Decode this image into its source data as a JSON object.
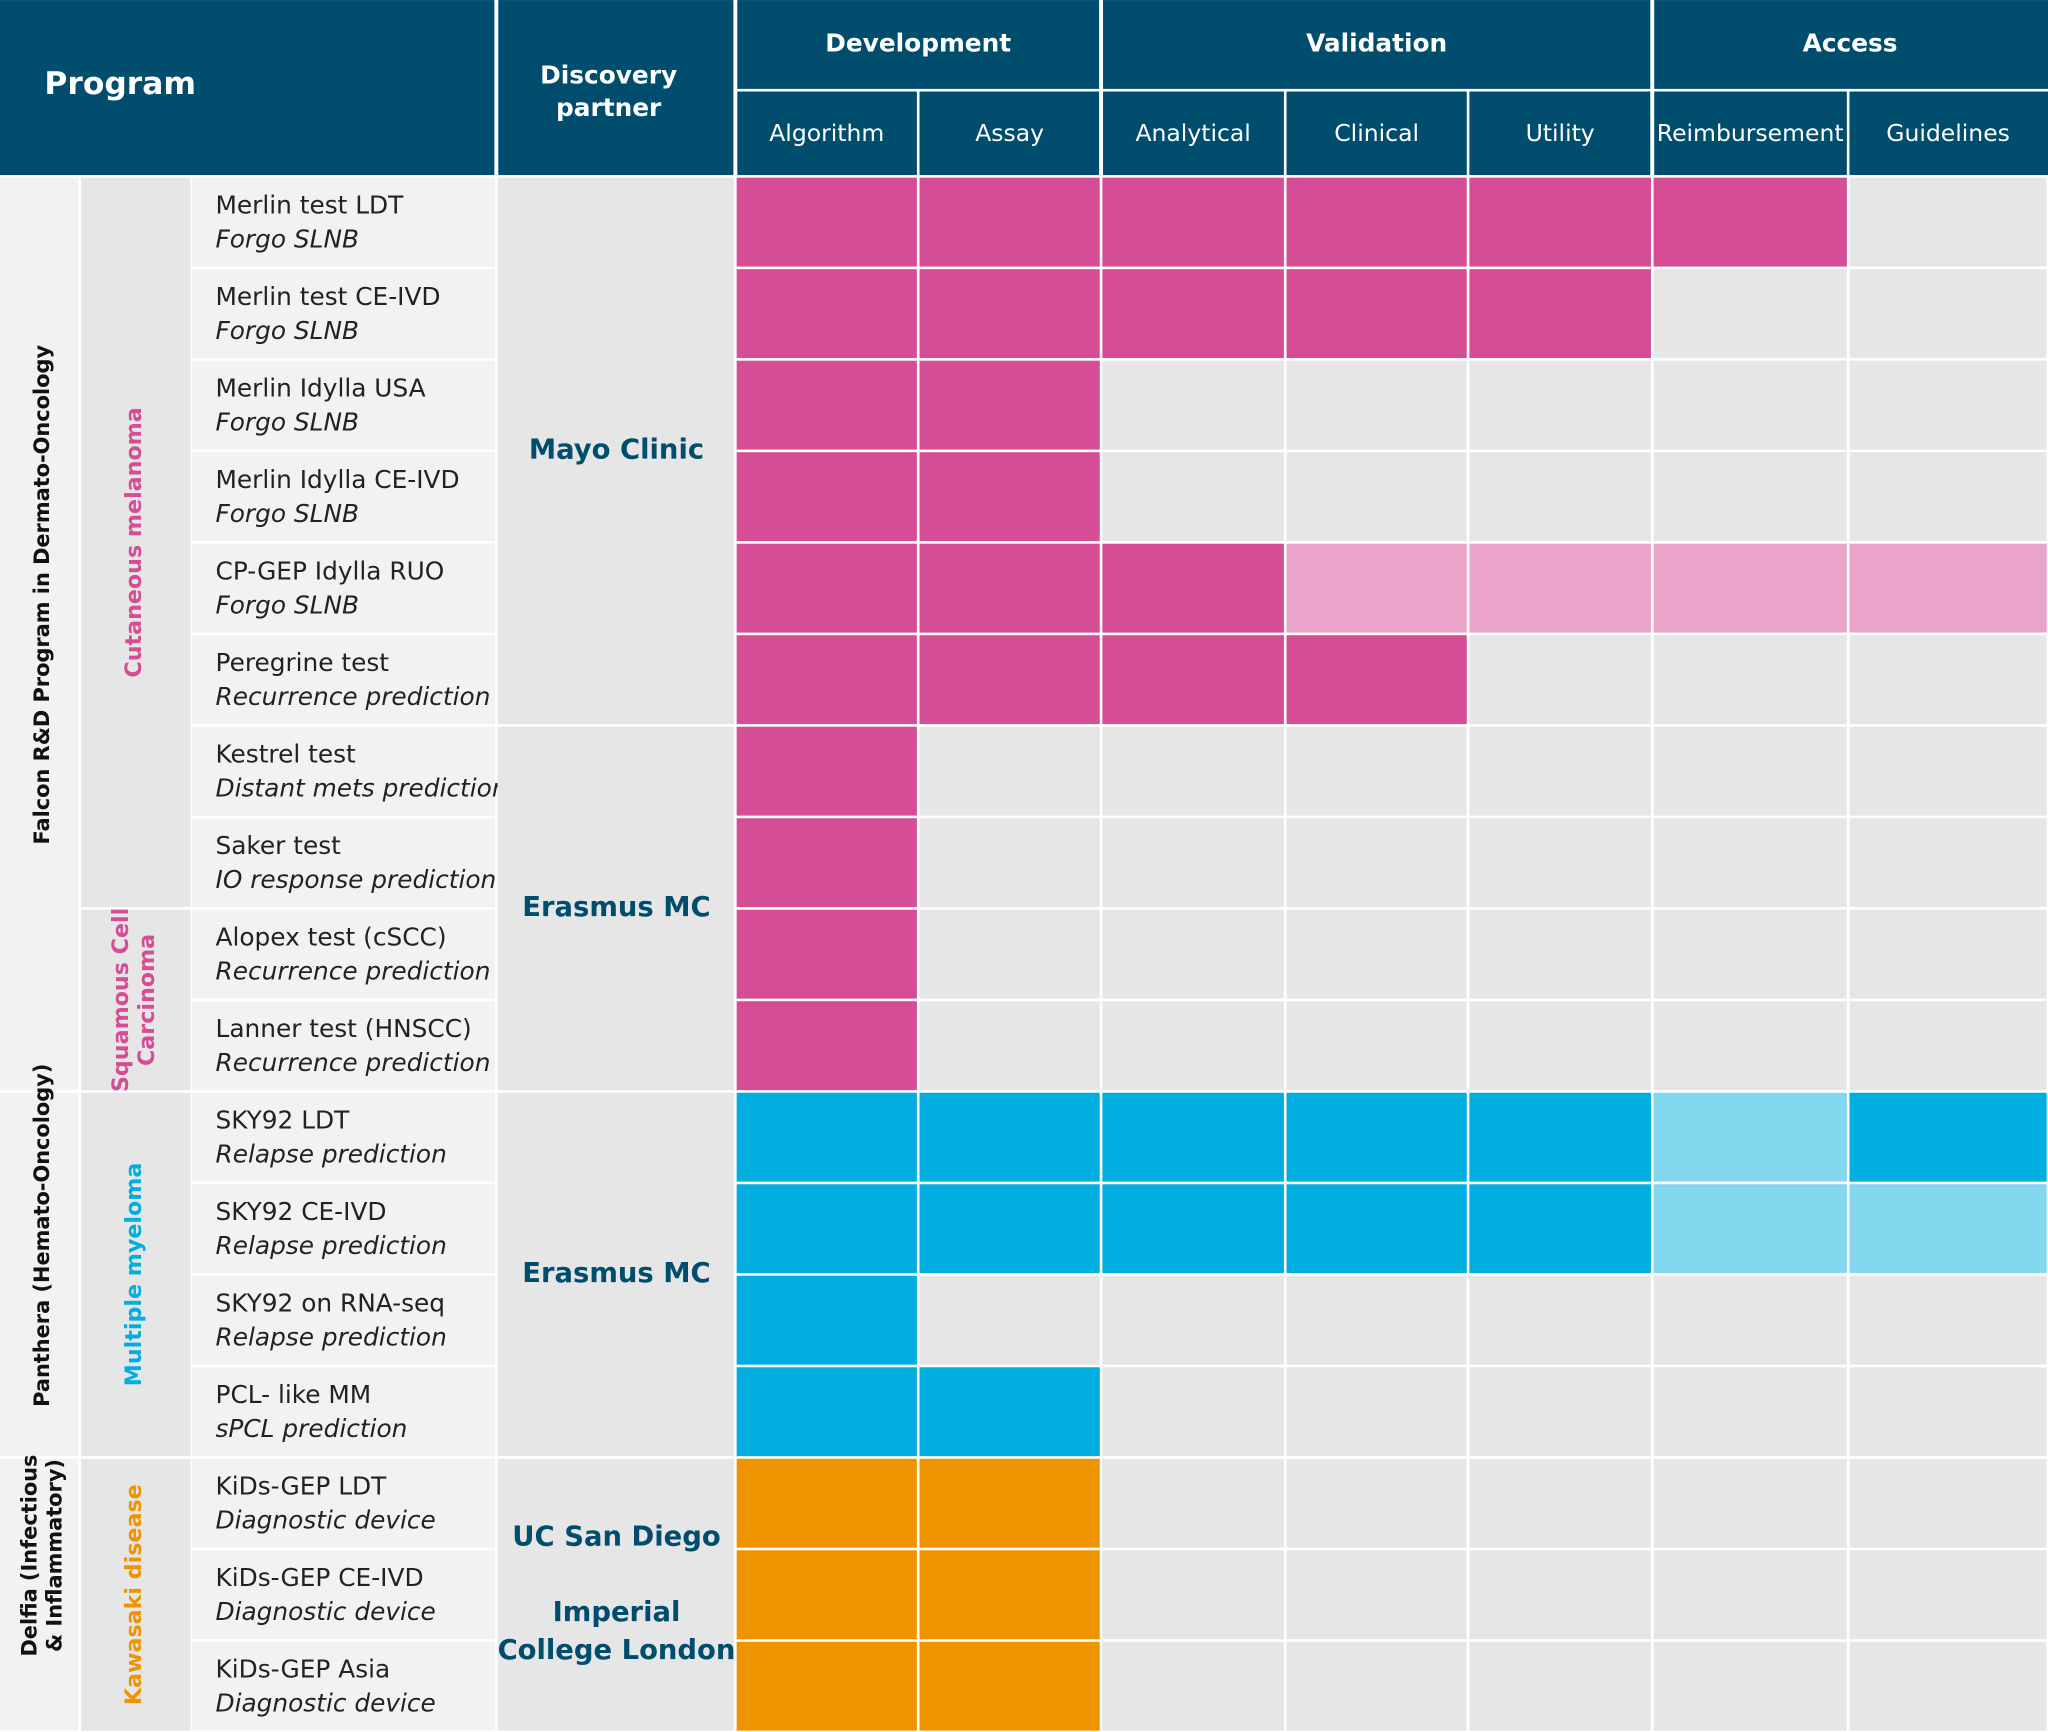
{
  "header": {
    "program": "Program",
    "partner": [
      "Discovery",
      "partner"
    ],
    "phases": [
      {
        "name": "Development",
        "stages": [
          "Algorithm",
          "Assay"
        ]
      },
      {
        "name": "Validation",
        "stages": [
          "Analytical",
          "Clinical",
          "Utility"
        ]
      },
      {
        "name": "Access",
        "stages": [
          "Reimbursement",
          "Guidelines"
        ]
      }
    ]
  },
  "colors": {
    "header": "#004d6e",
    "empty": "#e6e6e6",
    "label_bg": "#f2f2f2"
  },
  "groups": [
    {
      "name": [
        "Falcon R&D Program in Dermato-Oncology"
      ],
      "color": "#d44d95",
      "light": "#eba4c9",
      "indications": [
        {
          "name": [
            "Cutaneous melanoma"
          ],
          "count": 8
        },
        {
          "name": [
            "Squamous Cell",
            "Carcinoma"
          ],
          "count": 2
        }
      ],
      "partners": [
        {
          "name": [
            "Mayo Clinic"
          ],
          "programs": [
            {
              "name": "Merlin test LDT",
              "use": "Forgo SLNB",
              "stages": [
                "full",
                "full",
                "full",
                "full",
                "full",
                "full",
                "none"
              ]
            },
            {
              "name": "Merlin test CE-IVD",
              "use": "Forgo SLNB",
              "stages": [
                "full",
                "full",
                "full",
                "full",
                "full",
                "none",
                "none"
              ]
            },
            {
              "name": "Merlin Idylla USA",
              "use": "Forgo SLNB",
              "stages": [
                "full",
                "full",
                "none",
                "none",
                "none",
                "none",
                "none"
              ]
            },
            {
              "name": "Merlin Idylla CE-IVD",
              "use": "Forgo SLNB",
              "stages": [
                "full",
                "full",
                "none",
                "none",
                "none",
                "none",
                "none"
              ]
            },
            {
              "name": "CP-GEP Idylla RUO",
              "use": "Forgo SLNB",
              "stages": [
                "full",
                "full",
                "full",
                "light",
                "light",
                "light",
                "light"
              ]
            },
            {
              "name": "Peregrine test",
              "use": "Recurrence prediction",
              "stages": [
                "full",
                "full",
                "full",
                "full",
                "none",
                "none",
                "none"
              ]
            }
          ]
        },
        {
          "name": [
            "Erasmus MC"
          ],
          "programs": [
            {
              "name": "Kestrel test",
              "use": "Distant mets prediction",
              "stages": [
                "full",
                "none",
                "none",
                "none",
                "none",
                "none",
                "none"
              ]
            },
            {
              "name": "Saker test",
              "use": "IO response prediction",
              "stages": [
                "full",
                "none",
                "none",
                "none",
                "none",
                "none",
                "none"
              ]
            },
            {
              "name": "Alopex test (cSCC)",
              "use": "Recurrence prediction",
              "stages": [
                "full",
                "none",
                "none",
                "none",
                "none",
                "none",
                "none"
              ]
            },
            {
              "name": "Lanner test (HNSCC)",
              "use": "Recurrence prediction",
              "stages": [
                "full",
                "none",
                "none",
                "none",
                "none",
                "none",
                "none"
              ]
            }
          ]
        }
      ]
    },
    {
      "name": [
        "Panthera (Hemato-Oncology)"
      ],
      "color": "#00aee0",
      "light": "#83d7ef",
      "indications": [
        {
          "name": [
            "Multiple myeloma"
          ],
          "count": 4
        }
      ],
      "partners": [
        {
          "name": [
            "Erasmus MC"
          ],
          "programs": [
            {
              "name": "SKY92 LDT",
              "use": "Relapse prediction",
              "stages": [
                "full",
                "full",
                "full",
                "full",
                "full",
                "light",
                "full"
              ]
            },
            {
              "name": "SKY92 CE-IVD",
              "use": "Relapse prediction",
              "stages": [
                "full",
                "full",
                "full",
                "full",
                "full",
                "light",
                "light"
              ]
            },
            {
              "name": "SKY92 on RNA-seq",
              "use": "Relapse prediction",
              "stages": [
                "full",
                "none",
                "none",
                "none",
                "none",
                "none",
                "none"
              ]
            },
            {
              "name": "PCL- like MM",
              "use": "sPCL prediction",
              "stages": [
                "full",
                "full",
                "none",
                "none",
                "none",
                "none",
                "none"
              ]
            }
          ]
        }
      ]
    },
    {
      "name": [
        "Delfia (Infectious",
        "& Inflammatory)"
      ],
      "color": "#f09300",
      "light": "#f7c680",
      "indications": [
        {
          "name": [
            "Kawasaki disease"
          ],
          "count": 3
        }
      ],
      "partners": [
        {
          "name": [
            "UC San Diego",
            " ",
            "Imperial",
            "College London"
          ],
          "programs": [
            {
              "name": "KiDs-GEP LDT",
              "use": "Diagnostic device",
              "stages": [
                "full",
                "full",
                "none",
                "none",
                "none",
                "none",
                "none"
              ]
            },
            {
              "name": "KiDs-GEP CE-IVD",
              "use": "Diagnostic device",
              "stages": [
                "full",
                "full",
                "none",
                "none",
                "none",
                "none",
                "none"
              ]
            },
            {
              "name": "KiDs-GEP Asia",
              "use": "Diagnostic device",
              "stages": [
                "full",
                "full",
                "none",
                "none",
                "none",
                "none",
                "none"
              ]
            }
          ]
        }
      ]
    }
  ]
}
